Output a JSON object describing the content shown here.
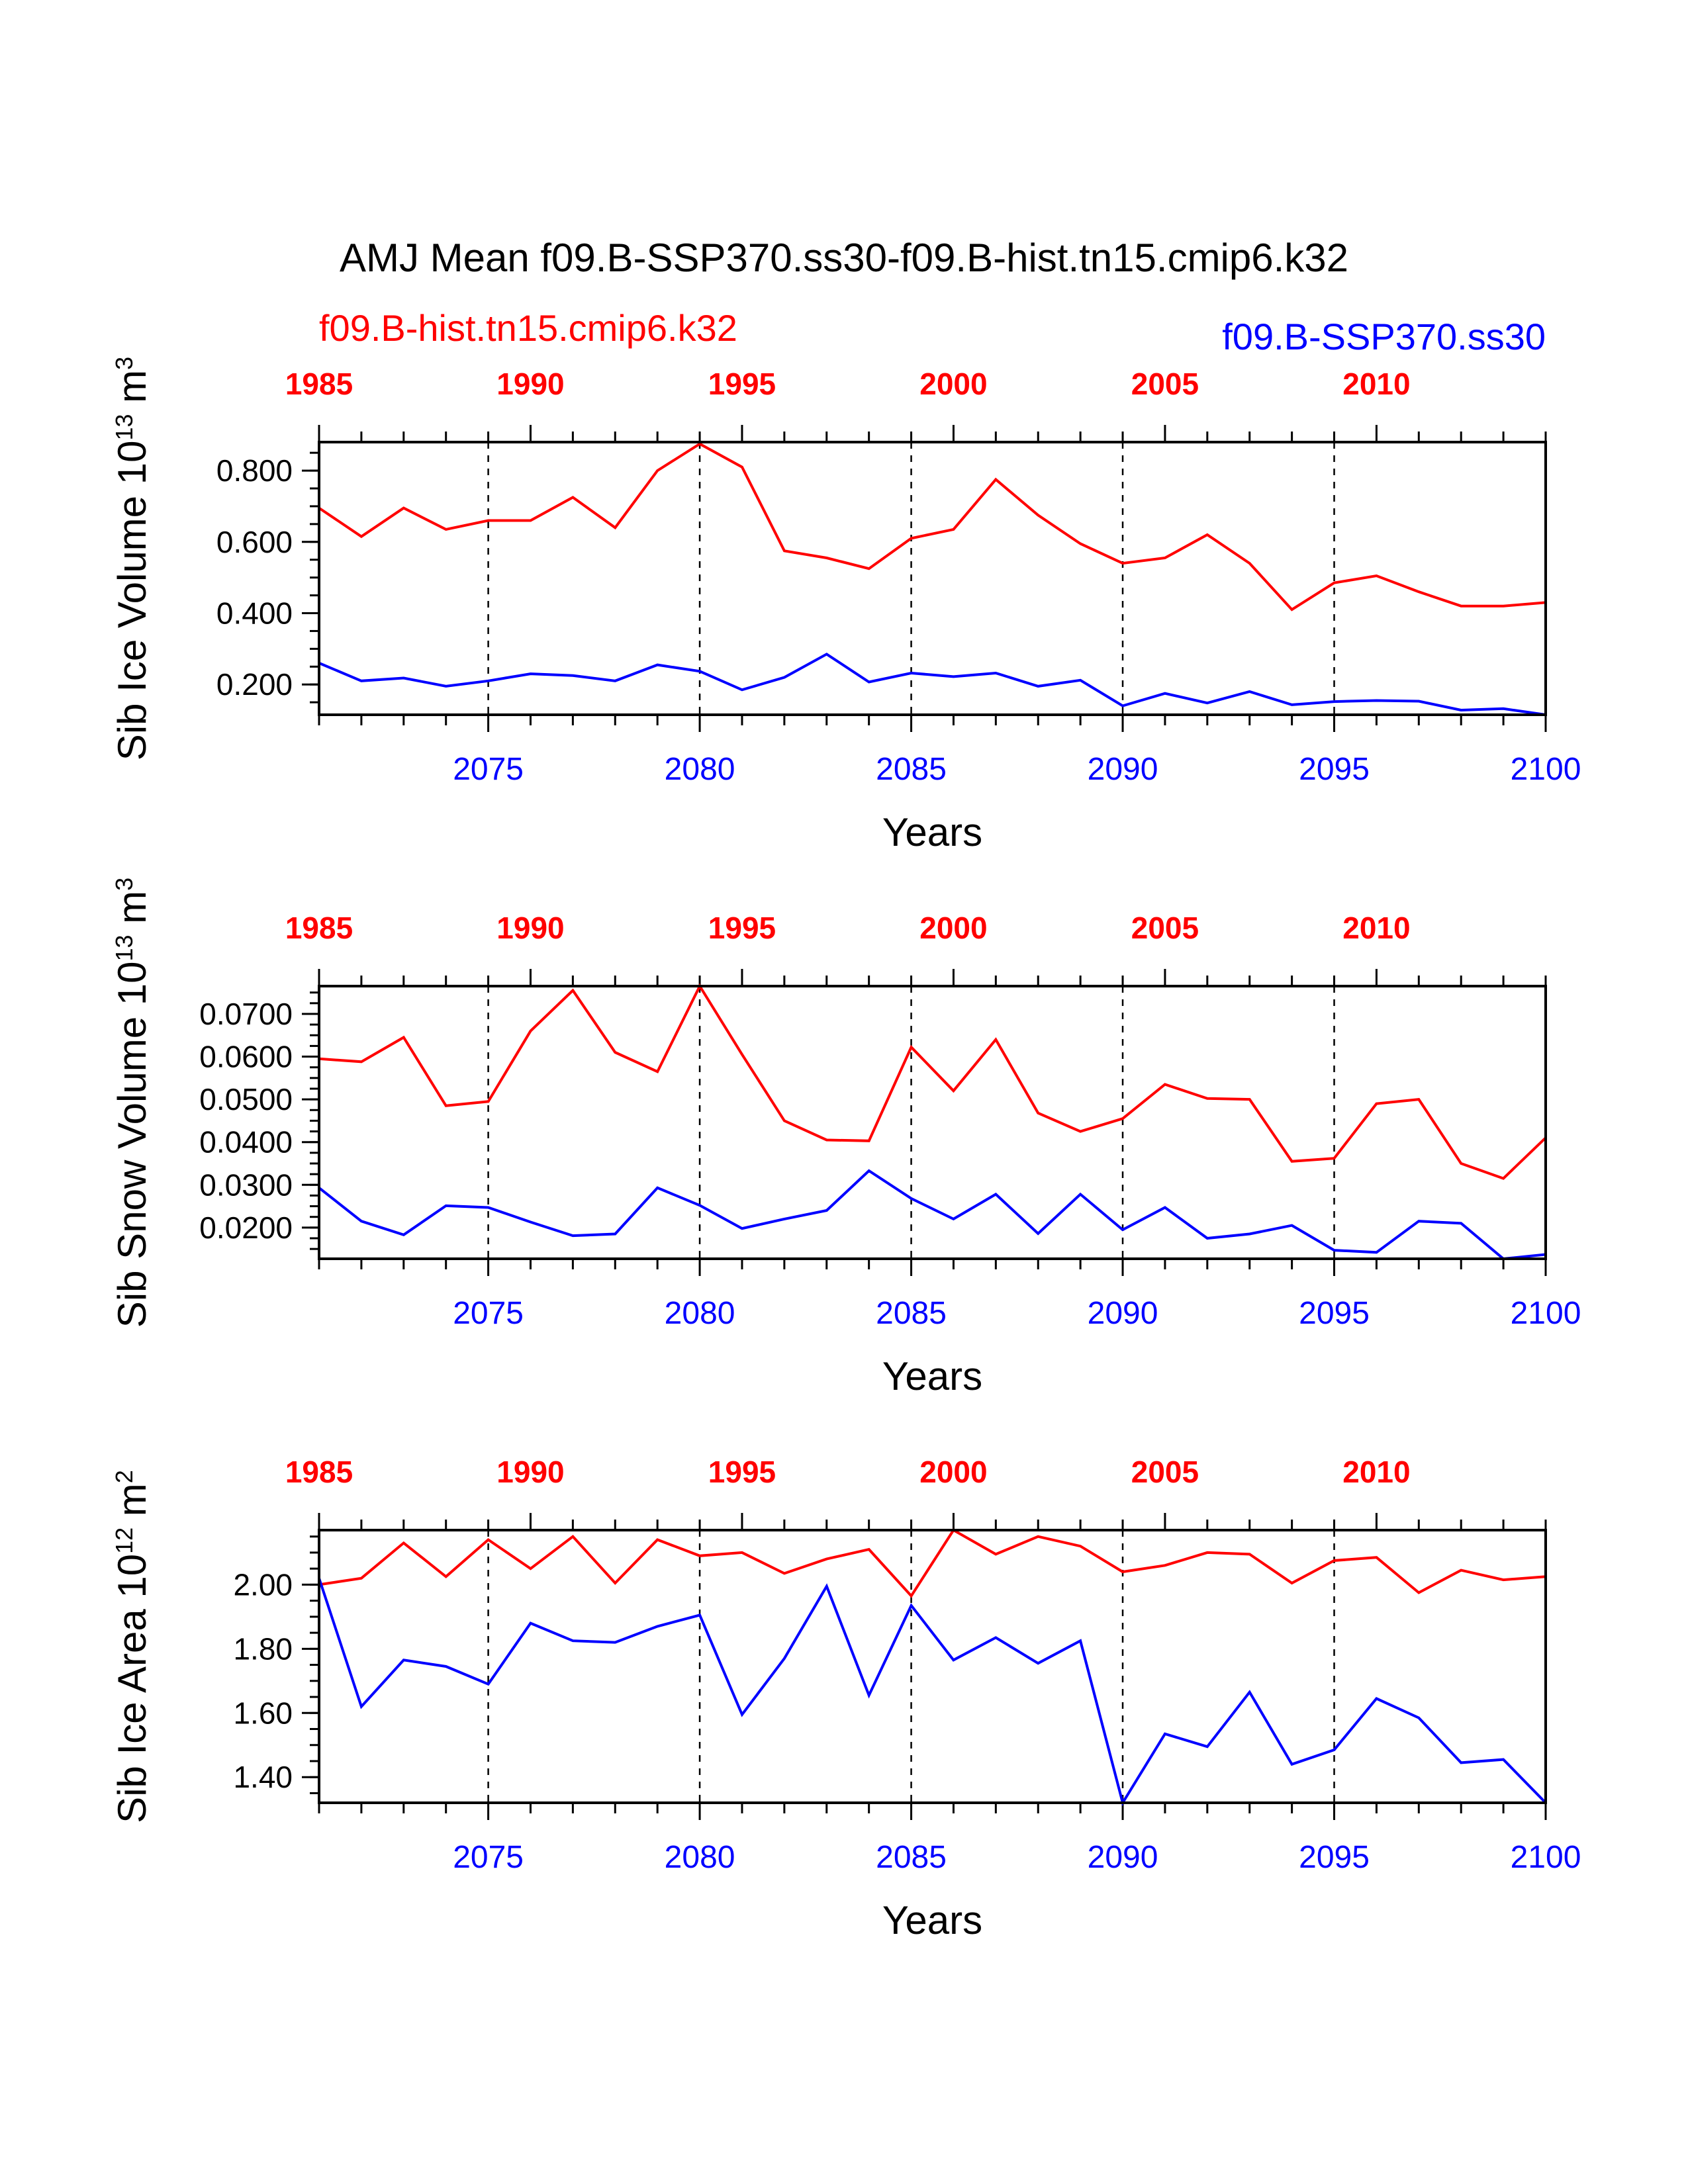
{
  "title": "AMJ Mean f09.B-SSP370.ss30-f09.B-hist.tn15.cmip6.k32",
  "legend": {
    "hist": "f09.B-hist.tn15.cmip6.k32",
    "ssp": "f09.B-SSP370.ss30"
  },
  "colors": {
    "hist": "#ff0000",
    "ssp": "#0000ff",
    "axis": "#000000"
  },
  "chart_data": [
    {
      "type": "line",
      "ylabel": {
        "base": "Sib Ice Volume 10",
        "exp": "13",
        "unit": " m",
        "unit_exp": "3"
      },
      "xlabel": "Years",
      "ylim": [
        0.115,
        0.88
      ],
      "yticks": [
        {
          "v": 0.2,
          "label": "0.200"
        },
        {
          "v": 0.4,
          "label": "0.400"
        },
        {
          "v": 0.6,
          "label": "0.600"
        },
        {
          "v": 0.8,
          "label": "0.800"
        }
      ],
      "yminor_step": 0.05,
      "x_bottom": {
        "range": [
          2071,
          2100
        ],
        "ticks": [
          2075,
          2080,
          2085,
          2090,
          2095,
          2100
        ]
      },
      "x_top": {
        "range": [
          1985,
          2014
        ],
        "ticks": [
          1985,
          1990,
          1995,
          2000,
          2005,
          2010
        ]
      },
      "grid_x": [
        2075,
        2080,
        2085,
        2090,
        2095
      ],
      "series": [
        {
          "key": "hist",
          "name": "f09.B-hist.tn15.cmip6.k32",
          "values": [
            0.695,
            0.615,
            0.695,
            0.635,
            0.66,
            0.66,
            0.725,
            0.64,
            0.8,
            0.875,
            0.81,
            0.575,
            0.555,
            0.525,
            0.61,
            0.635,
            0.775,
            0.675,
            0.595,
            0.54,
            0.555,
            0.62,
            0.54,
            0.41,
            0.485,
            0.505,
            0.46,
            0.42,
            0.42,
            0.43
          ]
        },
        {
          "key": "ssp",
          "name": "f09.B-SSP370.ss30",
          "values": [
            0.26,
            0.21,
            0.218,
            0.195,
            0.21,
            0.23,
            0.225,
            0.21,
            0.255,
            0.237,
            0.185,
            0.22,
            0.285,
            0.207,
            0.232,
            0.222,
            0.232,
            0.195,
            0.212,
            0.14,
            0.175,
            0.148,
            0.18,
            0.143,
            0.152,
            0.155,
            0.153,
            0.128,
            0.132,
            0.115
          ]
        }
      ]
    },
    {
      "type": "line",
      "ylabel": {
        "base": "Sib Snow Volume 10",
        "exp": "13",
        "unit": " m",
        "unit_exp": "3"
      },
      "xlabel": "Years",
      "ylim": [
        0.0127,
        0.0765
      ],
      "yticks": [
        {
          "v": 0.02,
          "label": "0.0200"
        },
        {
          "v": 0.03,
          "label": "0.0300"
        },
        {
          "v": 0.04,
          "label": "0.0400"
        },
        {
          "v": 0.05,
          "label": "0.0500"
        },
        {
          "v": 0.06,
          "label": "0.0600"
        },
        {
          "v": 0.07,
          "label": "0.0700"
        }
      ],
      "yminor_step": 0.0025,
      "x_bottom": {
        "range": [
          2071,
          2100
        ],
        "ticks": [
          2075,
          2080,
          2085,
          2090,
          2095,
          2100
        ]
      },
      "x_top": {
        "range": [
          1985,
          2014
        ],
        "ticks": [
          1985,
          1990,
          1995,
          2000,
          2005,
          2010
        ]
      },
      "grid_x": [
        2075,
        2080,
        2085,
        2090,
        2095
      ],
      "series": [
        {
          "key": "hist",
          "name": "f09.B-hist.tn15.cmip6.k32",
          "values": [
            0.0595,
            0.0588,
            0.0645,
            0.0485,
            0.0495,
            0.066,
            0.0755,
            0.061,
            0.0565,
            0.0765,
            0.0605,
            0.045,
            0.0405,
            0.0403,
            0.0622,
            0.052,
            0.064,
            0.0468,
            0.0425,
            0.0455,
            0.0535,
            0.0502,
            0.05,
            0.0355,
            0.0362,
            0.049,
            0.05,
            0.035,
            0.0315,
            0.041
          ]
        },
        {
          "key": "ssp",
          "name": "f09.B-SSP370.ss30",
          "values": [
            0.0293,
            0.0215,
            0.0183,
            0.0251,
            0.0247,
            0.0213,
            0.0181,
            0.0185,
            0.0293,
            0.0252,
            0.0198,
            0.022,
            0.024,
            0.0333,
            0.0268,
            0.022,
            0.0278,
            0.0186,
            0.0278,
            0.0195,
            0.0247,
            0.0175,
            0.0185,
            0.0205,
            0.0147,
            0.0142,
            0.0215,
            0.021,
            0.0127,
            0.0137
          ]
        }
      ]
    },
    {
      "type": "line",
      "ylabel": {
        "base": "Sib Ice Area 10",
        "exp": "12",
        "unit": " m",
        "unit_exp": "2"
      },
      "xlabel": "Years",
      "ylim": [
        1.32,
        2.17
      ],
      "yticks": [
        {
          "v": 1.4,
          "label": "1.40"
        },
        {
          "v": 1.6,
          "label": "1.60"
        },
        {
          "v": 1.8,
          "label": "1.80"
        },
        {
          "v": 2.0,
          "label": "2.00"
        }
      ],
      "yminor_step": 0.05,
      "x_bottom": {
        "range": [
          2071,
          2100
        ],
        "ticks": [
          2075,
          2080,
          2085,
          2090,
          2095,
          2100
        ]
      },
      "x_top": {
        "range": [
          1985,
          2014
        ],
        "ticks": [
          1985,
          1990,
          1995,
          2000,
          2005,
          2010
        ]
      },
      "grid_x": [
        2075,
        2080,
        2085,
        2090,
        2095
      ],
      "series": [
        {
          "key": "hist",
          "name": "f09.B-hist.tn15.cmip6.k32",
          "values": [
            2.0,
            2.02,
            2.13,
            2.025,
            2.14,
            2.05,
            2.15,
            2.005,
            2.14,
            2.09,
            2.1,
            2.035,
            2.08,
            2.11,
            1.965,
            2.17,
            2.095,
            2.15,
            2.12,
            2.04,
            2.06,
            2.1,
            2.095,
            2.005,
            2.075,
            2.085,
            1.975,
            2.045,
            2.015,
            2.025
          ]
        },
        {
          "key": "ssp",
          "name": "f09.B-SSP370.ss30",
          "values": [
            2.02,
            1.62,
            1.765,
            1.745,
            1.69,
            1.88,
            1.825,
            1.82,
            1.87,
            1.905,
            1.595,
            1.77,
            1.995,
            1.655,
            1.935,
            1.765,
            1.835,
            1.755,
            1.825,
            1.32,
            1.535,
            1.495,
            1.665,
            1.44,
            1.485,
            1.645,
            1.585,
            1.445,
            1.455,
            1.32
          ]
        }
      ]
    }
  ]
}
